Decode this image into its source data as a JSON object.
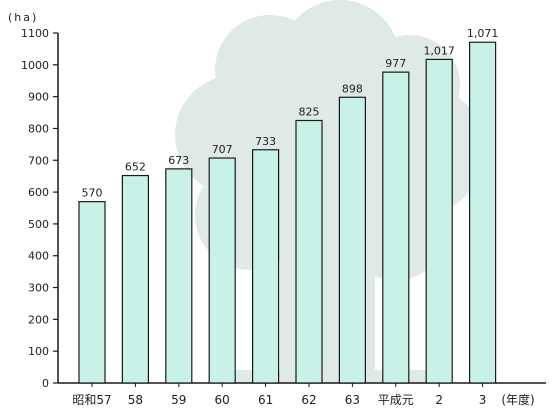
{
  "chart_data": {
    "type": "bar",
    "title": "",
    "ylabel": "(ha)",
    "xlabel": "(年度)",
    "categories": [
      "昭和57",
      "58",
      "59",
      "60",
      "61",
      "62",
      "63",
      "平成元",
      "2",
      "3"
    ],
    "values": [
      570,
      652,
      673,
      707,
      733,
      825,
      898,
      977,
      1017,
      1071
    ],
    "value_labels": [
      "570",
      "652",
      "673",
      "707",
      "733",
      "825",
      "898",
      "977",
      "1,017",
      "1,071"
    ],
    "ylim": [
      0,
      1100
    ],
    "yticks": [
      0,
      100,
      200,
      300,
      400,
      500,
      600,
      700,
      800,
      900,
      1000,
      1100
    ],
    "grid": false,
    "legend": "none",
    "colors": {
      "bar_fill": "#c8f2e8",
      "bar_stroke": "#1a1a1a",
      "background_motif": "#dfe9e5",
      "axis": "#1a1a1a"
    }
  }
}
